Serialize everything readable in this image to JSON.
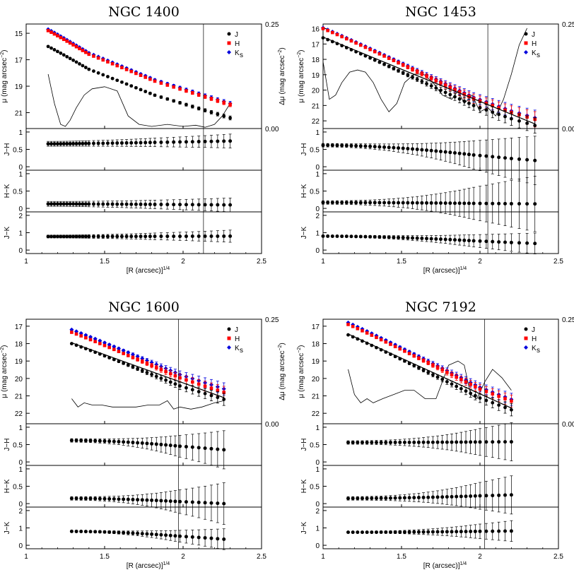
{
  "figure": {
    "colors": {
      "J": "#000000",
      "H": "#ff0000",
      "K": "#0000dd",
      "residual": "#000000",
      "frame": "#000000"
    },
    "legend": {
      "J": "J",
      "H": "H",
      "K_main": "K",
      "K_sub": "s",
      "placement": "top-right"
    },
    "labels": {
      "mu_main": "μ (mag arcsec",
      "mu_sup": "−2",
      "mu_tail": ")",
      "dmu_main": "Δμ (mag arcsec",
      "dmu_sup": "−2",
      "dmu_tail": ")",
      "x_main": "[R (arcsec)]",
      "x_sup": "1/4",
      "jh": "J−H",
      "hk": "H−K",
      "jk": "J−K"
    },
    "x_ticks": [
      "1",
      "1.5",
      "2",
      "2.5"
    ],
    "residual_ticks": [
      "0.25",
      "0.00"
    ],
    "color_ticks": [
      "0",
      "0.5",
      "1"
    ],
    "jk_ticks": [
      "0",
      "1",
      "2"
    ]
  },
  "chart_data": [
    {
      "type": "scatter",
      "title": "NGC 1400",
      "xlim": [
        1,
        2.5
      ],
      "mu_ticks": [
        15,
        17,
        19,
        21
      ],
      "ylim_mu": [
        22.2,
        14.3
      ],
      "residual_range": [
        0,
        0.25
      ],
      "vline_x": 2.13,
      "x": [
        1.14,
        1.16,
        1.18,
        1.2,
        1.22,
        1.24,
        1.26,
        1.28,
        1.3,
        1.32,
        1.34,
        1.36,
        1.38,
        1.4,
        1.43,
        1.46,
        1.49,
        1.52,
        1.55,
        1.58,
        1.61,
        1.64,
        1.67,
        1.7,
        1.73,
        1.76,
        1.79,
        1.82,
        1.86,
        1.9,
        1.94,
        1.98,
        2.02,
        2.06,
        2.1,
        2.14,
        2.18,
        2.22,
        2.26,
        2.3
      ],
      "mu_J_range": [
        16.0,
        21.4
      ],
      "mu_H_range": [
        14.8,
        20.4
      ],
      "mu_K_range": [
        14.7,
        20.3
      ],
      "fit_line": false,
      "mu_err_range": [
        0.04,
        0.15
      ],
      "residual_curve": {
        "x": [
          1.14,
          1.18,
          1.22,
          1.25,
          1.28,
          1.32,
          1.37,
          1.42,
          1.5,
          1.58,
          1.65,
          1.72,
          1.8,
          1.9,
          2.0,
          2.08,
          2.14,
          2.2,
          2.25,
          2.3
        ],
        "y": [
          0.13,
          0.06,
          0.01,
          0.005,
          0.02,
          0.05,
          0.08,
          0.095,
          0.1,
          0.09,
          0.03,
          0.01,
          0.005,
          0.01,
          0.005,
          0.008,
          0.003,
          0.01,
          0.03,
          0.06
        ]
      },
      "JH": {
        "range": [
          0.66,
          0.74
        ],
        "err_range": [
          0.07,
          0.2
        ],
        "ylim": [
          -0.1,
          1.1
        ]
      },
      "HK": {
        "range": [
          0.13,
          0.1
        ],
        "err_range": [
          0.07,
          0.2
        ],
        "ylim": [
          -0.1,
          1.1
        ]
      },
      "JK": {
        "range": [
          0.78,
          0.8
        ],
        "err_range": [
          0.08,
          0.35
        ],
        "ylim": [
          -0.2,
          2.2
        ]
      }
    },
    {
      "type": "scatter",
      "title": "NGC 1453",
      "xlim": [
        1,
        2.5
      ],
      "mu_ticks": [
        16,
        17,
        18,
        19,
        20,
        21,
        22
      ],
      "ylim_mu": [
        22.5,
        15.7
      ],
      "residual_range": [
        0,
        0.25
      ],
      "vline_x": 2.05,
      "x": [
        1.0,
        1.03,
        1.06,
        1.09,
        1.12,
        1.15,
        1.18,
        1.21,
        1.24,
        1.27,
        1.3,
        1.33,
        1.36,
        1.39,
        1.42,
        1.45,
        1.48,
        1.51,
        1.54,
        1.57,
        1.6,
        1.63,
        1.66,
        1.69,
        1.72,
        1.75,
        1.78,
        1.81,
        1.84,
        1.87,
        1.9,
        1.93,
        1.96,
        2.0,
        2.04,
        2.08,
        2.12,
        2.16,
        2.2,
        2.25,
        2.3,
        2.35
      ],
      "mu_J_range": [
        16.6,
        22.3
      ],
      "mu_H_range": [
        16.0,
        21.9
      ],
      "mu_K_range": [
        15.95,
        21.8
      ],
      "fit_line": true,
      "mu_err_range": [
        0.04,
        0.5
      ],
      "residual_curve": {
        "x": [
          1.0,
          1.04,
          1.08,
          1.12,
          1.17,
          1.22,
          1.27,
          1.32,
          1.37,
          1.42,
          1.47,
          1.52,
          1.58,
          1.64,
          1.7,
          1.76,
          1.82,
          1.86,
          1.9,
          1.95,
          2.0,
          2.05,
          2.1,
          2.15,
          2.2,
          2.25,
          2.3
        ],
        "y": [
          0.16,
          0.07,
          0.08,
          0.11,
          0.135,
          0.14,
          0.135,
          0.11,
          0.07,
          0.04,
          0.06,
          0.11,
          0.13,
          0.13,
          0.11,
          0.08,
          0.07,
          0.09,
          0.06,
          0.08,
          0.04,
          0.05,
          0.03,
          0.07,
          0.13,
          0.2,
          0.24
        ]
      },
      "JH": {
        "range": [
          0.62,
          0.18
        ],
        "err_range": [
          0.05,
          0.7
        ],
        "ylim": [
          -0.1,
          1.1
        ]
      },
      "HK": {
        "range": [
          0.17,
          0.13
        ],
        "err_range": [
          0.05,
          0.8
        ],
        "ylim": [
          -0.1,
          1.1
        ]
      },
      "JK": {
        "range": [
          0.8,
          0.38
        ],
        "err_range": [
          0.05,
          0.6
        ],
        "ylim": [
          -0.2,
          2.2
        ]
      }
    },
    {
      "type": "scatter",
      "title": "NGC 1600",
      "xlim": [
        1,
        2.5
      ],
      "mu_ticks": [
        17,
        18,
        19,
        20,
        21,
        22
      ],
      "ylim_mu": [
        22.6,
        16.6
      ],
      "residual_range": [
        0,
        0.25
      ],
      "vline_x": 1.97,
      "x": [
        1.29,
        1.32,
        1.35,
        1.38,
        1.41,
        1.44,
        1.47,
        1.5,
        1.53,
        1.56,
        1.59,
        1.62,
        1.65,
        1.68,
        1.71,
        1.74,
        1.77,
        1.8,
        1.83,
        1.86,
        1.89,
        1.92,
        1.95,
        1.98,
        2.02,
        2.06,
        2.1,
        2.14,
        2.18,
        2.22,
        2.26
      ],
      "mu_J_range": [
        18.0,
        21.2
      ],
      "mu_H_range": [
        17.35,
        20.8
      ],
      "mu_K_range": [
        17.2,
        20.6
      ],
      "fit_line": true,
      "mu_err_range": [
        0.04,
        0.35
      ],
      "residual_curve": {
        "x": [
          1.29,
          1.33,
          1.37,
          1.42,
          1.48,
          1.55,
          1.62,
          1.7,
          1.78,
          1.85,
          1.9,
          1.94,
          1.98,
          2.05,
          2.12,
          2.2,
          2.26
        ],
        "y": [
          0.06,
          0.04,
          0.05,
          0.045,
          0.045,
          0.04,
          0.04,
          0.04,
          0.045,
          0.045,
          0.055,
          0.035,
          0.04,
          0.035,
          0.04,
          0.05,
          0.055
        ]
      },
      "JH": {
        "range": [
          0.62,
          0.35
        ],
        "err_range": [
          0.05,
          0.55
        ],
        "ylim": [
          -0.1,
          1.1
        ]
      },
      "HK": {
        "range": [
          0.15,
          0.0
        ],
        "err_range": [
          0.05,
          0.6
        ],
        "ylim": [
          -0.1,
          1.1
        ]
      },
      "JK": {
        "range": [
          0.8,
          0.35
        ],
        "err_range": [
          0.05,
          0.6
        ],
        "ylim": [
          -0.2,
          2.2
        ]
      }
    },
    {
      "type": "scatter",
      "title": "NGC 7192",
      "xlim": [
        1,
        2.5
      ],
      "mu_ticks": [
        17,
        18,
        19,
        20,
        21,
        22
      ],
      "ylim_mu": [
        22.6,
        16.6
      ],
      "residual_range": [
        0,
        0.25
      ],
      "vline_x": 2.03,
      "x": [
        1.16,
        1.19,
        1.22,
        1.25,
        1.28,
        1.31,
        1.34,
        1.37,
        1.4,
        1.43,
        1.46,
        1.49,
        1.52,
        1.55,
        1.58,
        1.61,
        1.64,
        1.67,
        1.7,
        1.73,
        1.76,
        1.79,
        1.82,
        1.85,
        1.88,
        1.91,
        1.94,
        1.97,
        2.0,
        2.04,
        2.08,
        2.12,
        2.16,
        2.2
      ],
      "mu_J_range": [
        17.5,
        21.8
      ],
      "mu_H_range": [
        16.9,
        21.3
      ],
      "mu_K_range": [
        16.8,
        21.2
      ],
      "fit_line": true,
      "mu_err_range": [
        0.04,
        0.35
      ],
      "residual_curve": {
        "x": [
          1.16,
          1.2,
          1.24,
          1.28,
          1.32,
          1.38,
          1.45,
          1.52,
          1.58,
          1.65,
          1.72,
          1.8,
          1.86,
          1.9,
          1.94,
          1.98,
          2.03,
          2.08,
          2.14,
          2.2
        ],
        "y": [
          0.13,
          0.07,
          0.05,
          0.06,
          0.05,
          0.06,
          0.07,
          0.08,
          0.08,
          0.06,
          0.06,
          0.14,
          0.15,
          0.14,
          0.07,
          0.06,
          0.1,
          0.13,
          0.11,
          0.08
        ]
      },
      "JH": {
        "range": [
          0.56,
          0.58
        ],
        "err_range": [
          0.05,
          0.55
        ],
        "ylim": [
          -0.1,
          1.1
        ]
      },
      "HK": {
        "range": [
          0.15,
          0.25
        ],
        "err_range": [
          0.05,
          0.55
        ],
        "ylim": [
          -0.1,
          1.1
        ]
      },
      "JK": {
        "range": [
          0.75,
          0.82
        ],
        "err_range": [
          0.05,
          0.6
        ],
        "ylim": [
          -0.2,
          2.2
        ]
      }
    }
  ]
}
